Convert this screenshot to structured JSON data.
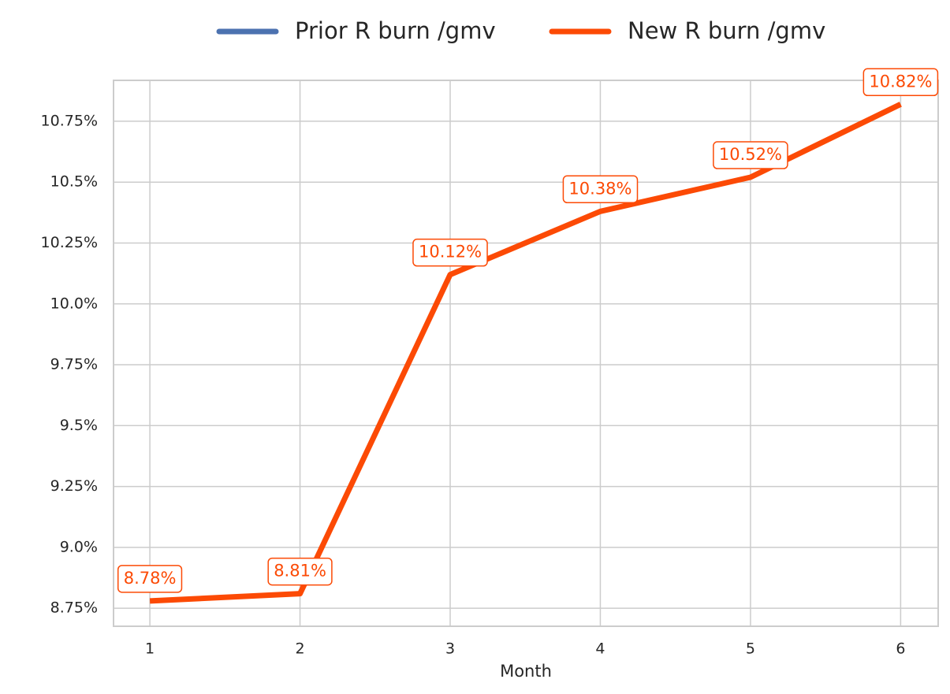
{
  "chart_data": {
    "type": "line",
    "x": [
      1,
      2,
      3,
      4,
      5,
      6
    ],
    "series": [
      {
        "name": "Prior R burn /gmv",
        "color": "#4c72b0",
        "values": [
          null,
          null,
          null,
          null,
          null,
          null
        ]
      },
      {
        "name": "New R burn /gmv",
        "color": "#fc4a05",
        "values": [
          8.78,
          8.81,
          10.12,
          10.38,
          10.52,
          10.82
        ],
        "value_labels": [
          "8.78%",
          "8.81%",
          "10.12%",
          "10.38%",
          "10.52%",
          "10.82%"
        ]
      }
    ],
    "xlabel": "Month",
    "xlim": [
      0.758,
      6.25
    ],
    "xticks": [
      1,
      2,
      3,
      4,
      5,
      6
    ],
    "ylim": [
      8.676,
      10.918
    ],
    "yticks": [
      {
        "value": 8.75,
        "label": "8.75%"
      },
      {
        "value": 9.0,
        "label": "9.0%"
      },
      {
        "value": 9.25,
        "label": "9.25%"
      },
      {
        "value": 9.5,
        "label": "9.5%"
      },
      {
        "value": 9.75,
        "label": "9.75%"
      },
      {
        "value": 10.0,
        "label": "10.0%"
      },
      {
        "value": 10.25,
        "label": "10.25%"
      },
      {
        "value": 10.5,
        "label": "10.5%"
      },
      {
        "value": 10.75,
        "label": "10.75%"
      }
    ],
    "grid": true,
    "legend": "top"
  }
}
